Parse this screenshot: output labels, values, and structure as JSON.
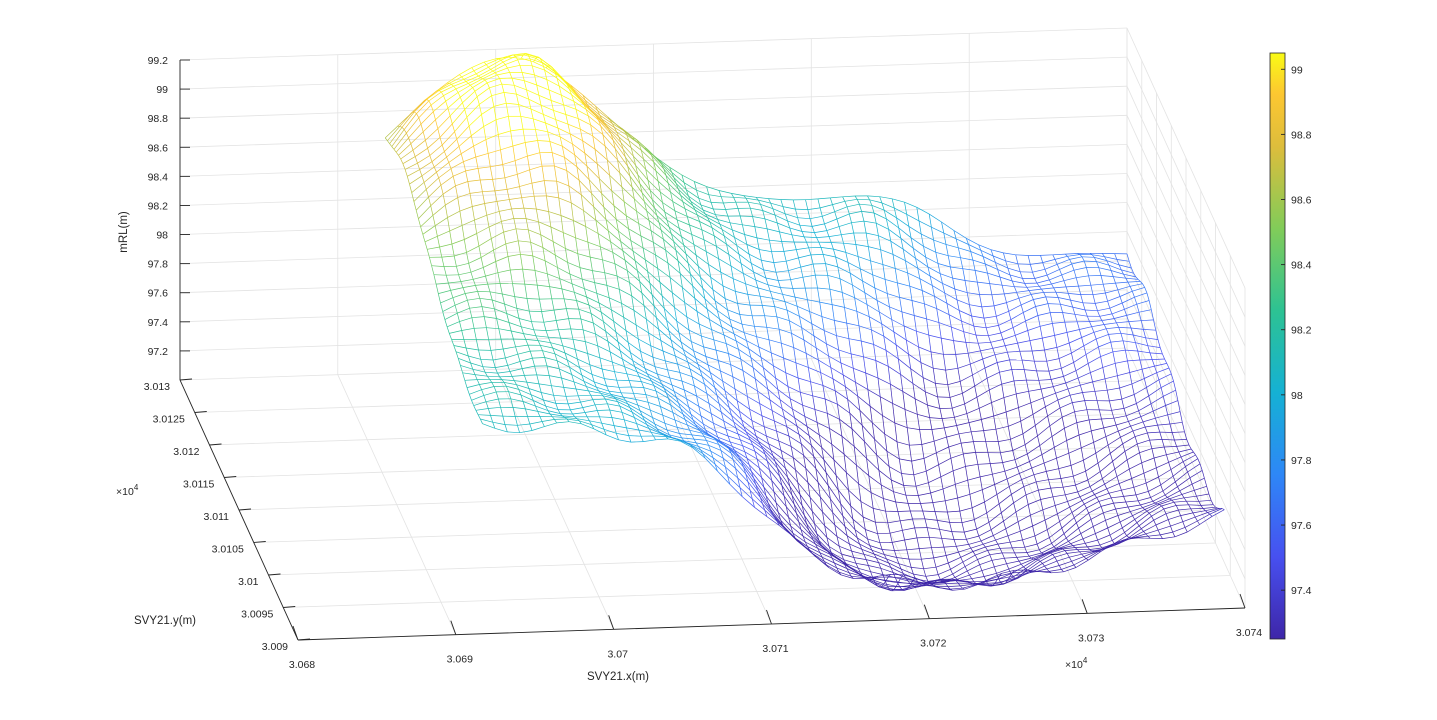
{
  "chart_data": {
    "type": "surface",
    "style": "mesh",
    "colormap": "parula",
    "xlabel": "SVY21.x(m)",
    "ylabel": "SVY21.y(m)",
    "zlabel": "mRL(m)",
    "xlim": [
      30680,
      30740
    ],
    "ylim": [
      30090,
      30130
    ],
    "zlim": [
      97.0,
      99.2
    ],
    "clim": [
      97.25,
      99.05
    ],
    "grid": true,
    "colorbar": "right",
    "x_ticks": [
      "3.068",
      "3.069",
      "3.07",
      "3.071",
      "3.072",
      "3.073",
      "3.074"
    ],
    "x_exponent": "×10",
    "x_exponent_power": "4",
    "y_ticks": [
      "3.009",
      "3.0095",
      "3.01",
      "3.0105",
      "3.011",
      "3.0115",
      "3.012",
      "3.0125",
      "3.013"
    ],
    "y_exponent": "×10",
    "y_exponent_power": "4",
    "z_ticks": [
      "97.2",
      "97.4",
      "97.6",
      "97.8",
      "98",
      "98.2",
      "98.4",
      "98.6",
      "98.8",
      "99",
      "99.2"
    ],
    "colorbar_ticks": [
      "97.4",
      "97.6",
      "97.8",
      "98",
      "98.2",
      "98.4",
      "98.6",
      "98.8",
      "99"
    ],
    "surface": {
      "x_range": [
        30693,
        30740
      ],
      "y_range": [
        30097,
        30130
      ],
      "features": [
        {
          "kind": "high-ridge",
          "x": 30700.8,
          "y": 30126.5,
          "z": 99.0
        },
        {
          "kind": "plateau",
          "x": 30697,
          "y": 30115,
          "z": 98.1
        },
        {
          "kind": "low-basin",
          "x": 30724,
          "y": 30104,
          "z": 97.25
        },
        {
          "kind": "low-basin",
          "x": 30717,
          "y": 30112,
          "z": 97.5
        },
        {
          "kind": "bank",
          "x": 30736,
          "y": 30125,
          "z": 98.1
        }
      ]
    }
  }
}
